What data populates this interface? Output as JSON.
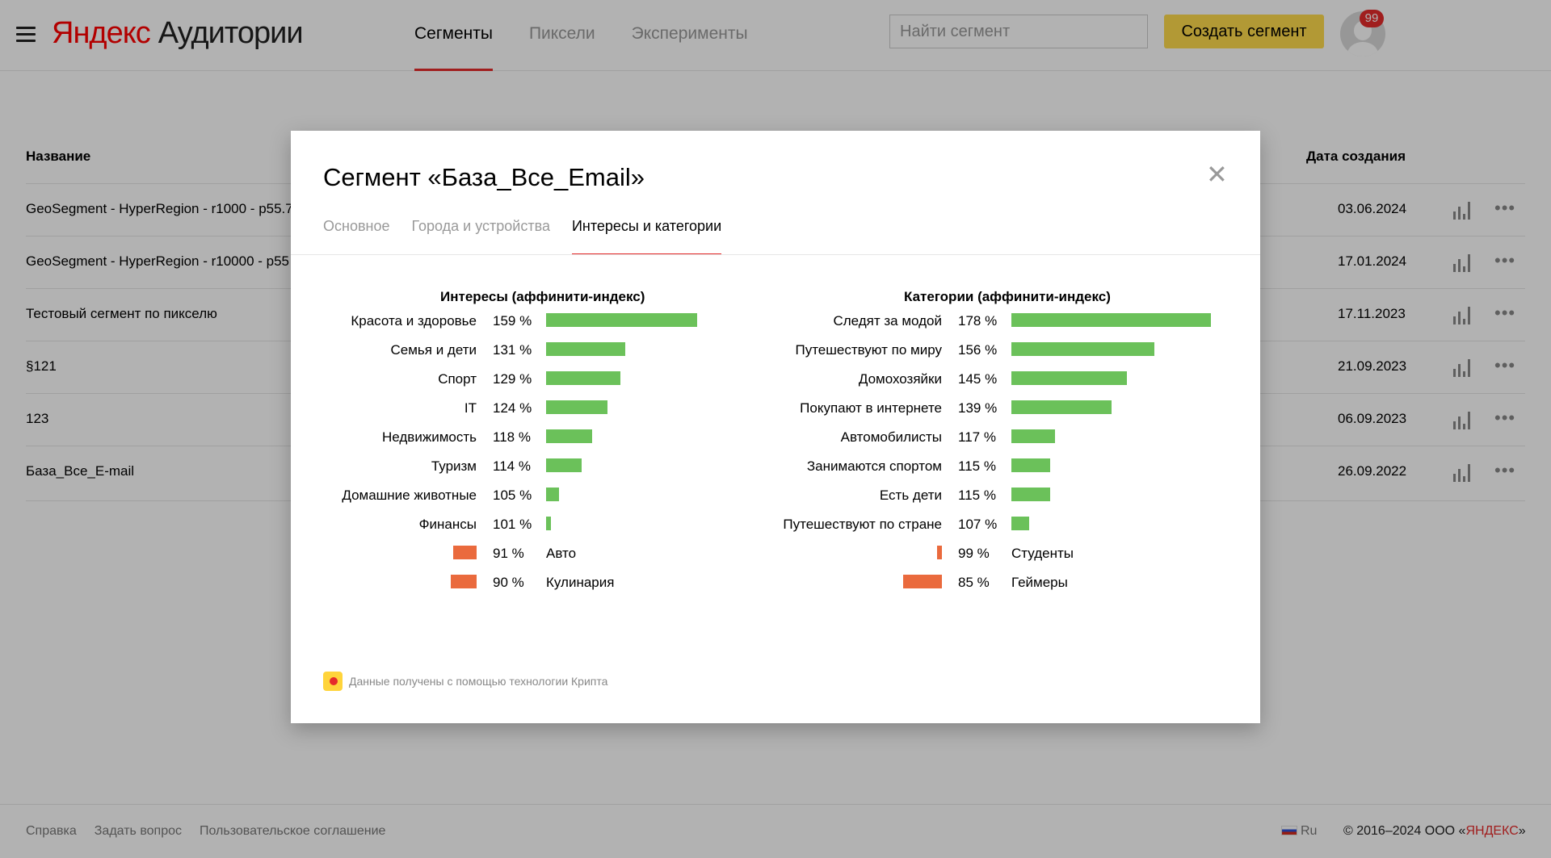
{
  "header": {
    "logo_brand": "Яндекс",
    "logo_product": "Аудитории",
    "nav": [
      "Сегменты",
      "Пиксели",
      "Эксперименты"
    ],
    "search_placeholder": "Найти сегмент",
    "create_button": "Создать сегмент",
    "notifications": "99"
  },
  "table": {
    "col_name": "Название",
    "col_date": "Дата создания",
    "rows": [
      {
        "name": "GeoSegment - HyperRegion - r1000 - p55.7",
        "date": "03.06.2024"
      },
      {
        "name": "GeoSegment - HyperRegion - r10000 - p55",
        "date": "17.01.2024"
      },
      {
        "name": "Тестовый сегмент по пикселю",
        "date": "17.11.2023"
      },
      {
        "name": "§121",
        "date": "21.09.2023"
      },
      {
        "name": "123",
        "date": "06.09.2023"
      },
      {
        "name": "База_Все_E-mail",
        "date": "26.09.2022"
      }
    ]
  },
  "modal": {
    "title": "Сегмент «База_Все_Email»",
    "tabs": [
      "Основное",
      "Города и устройства",
      "Интересы и категории"
    ],
    "interests": {
      "title": "Интересы (аффинити-индекс)",
      "items": [
        {
          "label": "Красота и здоровье",
          "value": "159 %",
          "index": 159
        },
        {
          "label": "Семья и дети",
          "value": "131 %",
          "index": 131
        },
        {
          "label": "Спорт",
          "value": "129 %",
          "index": 129
        },
        {
          "label": "IT",
          "value": "124 %",
          "index": 124
        },
        {
          "label": "Недвижимость",
          "value": "118 %",
          "index": 118
        },
        {
          "label": "Туризм",
          "value": "114 %",
          "index": 114
        },
        {
          "label": "Домашние животные",
          "value": "105 %",
          "index": 105
        },
        {
          "label": "Финансы",
          "value": "101 %",
          "index": 101
        },
        {
          "label": "Авто",
          "value": "91 %",
          "index": 91
        },
        {
          "label": "Кулинария",
          "value": "90 %",
          "index": 90
        }
      ]
    },
    "categories": {
      "title": "Категории (аффинити-индекс)",
      "items": [
        {
          "label": "Следят за модой",
          "value": "178 %",
          "index": 178
        },
        {
          "label": "Путешествуют по миру",
          "value": "156 %",
          "index": 156
        },
        {
          "label": "Домохозяйки",
          "value": "145 %",
          "index": 145
        },
        {
          "label": "Покупают в интернете",
          "value": "139 %",
          "index": 139
        },
        {
          "label": "Автомобилисты",
          "value": "117 %",
          "index": 117
        },
        {
          "label": "Занимаются спортом",
          "value": "115 %",
          "index": 115
        },
        {
          "label": "Есть дети",
          "value": "115 %",
          "index": 115
        },
        {
          "label": "Путешествуют по стране",
          "value": "107 %",
          "index": 107
        },
        {
          "label": "Студенты",
          "value": "99 %",
          "index": 99
        },
        {
          "label": "Геймеры",
          "value": "85 %",
          "index": 85
        }
      ]
    },
    "note": "Данные получены с помощью технологии Крипта"
  },
  "footer": {
    "links": [
      "Справка",
      "Задать вопрос",
      "Пользовательское соглашение"
    ],
    "lang": "Ru",
    "copyright": "© 2016–2024 ООО «",
    "company": "ЯНДЕКС",
    "copyright_end": "»"
  },
  "colors": {
    "accent": "#e52b2b",
    "button": "#ffdb4d",
    "positive_bar": "#6bc15a",
    "negative_bar": "#ea6a3d"
  }
}
